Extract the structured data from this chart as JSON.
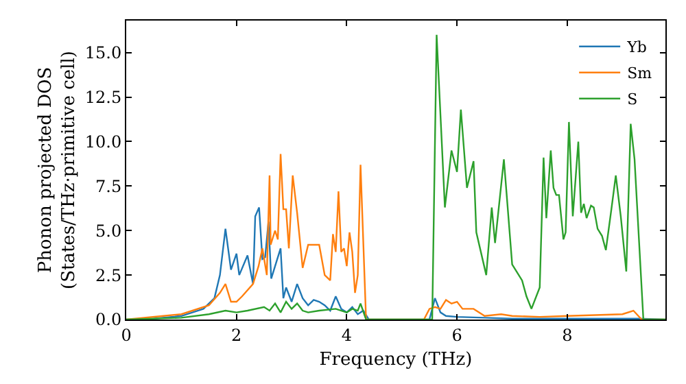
{
  "chart_data": {
    "type": "line",
    "xlabel": "Frequency (THz)",
    "ylabel": "Phonon projected DOS\n(States/THz·primitive cell)",
    "xlim": [
      0,
      9.78
    ],
    "ylim": [
      0,
      16.8
    ],
    "xticks": [
      0,
      2,
      4,
      6,
      8
    ],
    "yticks": [
      {
        "value": 0,
        "label": "0.0"
      },
      2.5,
      {
        "value": 5,
        "label": "5.0"
      },
      7.5,
      {
        "value": 10,
        "label": "10.0"
      },
      12.5,
      {
        "value": 15,
        "label": "15.0"
      }
    ],
    "legend": "top right",
    "marker": "none",
    "line_style": "solid",
    "series": [
      {
        "name": "Yb",
        "color": "#1f77b4",
        "x": [
          0,
          0.5,
          1,
          1.4,
          1.6,
          1.7,
          1.8,
          1.9,
          2.0,
          2.05,
          2.2,
          2.3,
          2.34,
          2.41,
          2.47,
          2.52,
          2.58,
          2.63,
          2.7,
          2.8,
          2.85,
          2.9,
          3.0,
          3.1,
          3.2,
          3.3,
          3.4,
          3.5,
          3.6,
          3.7,
          3.8,
          3.9,
          4.0,
          4.1,
          4.2,
          4.3,
          4.4,
          5.5,
          5.6,
          5.7,
          5.8,
          6.0,
          6.5,
          7.0,
          8.0,
          9.3,
          9.78
        ],
        "values": [
          0,
          0.05,
          0.2,
          0.6,
          1.2,
          2.5,
          5.1,
          2.8,
          3.7,
          2.5,
          3.6,
          2.0,
          5.8,
          6.3,
          3.4,
          3.5,
          5.5,
          2.3,
          3.0,
          4.0,
          1.2,
          1.8,
          1.0,
          2.0,
          1.2,
          0.8,
          1.1,
          1.0,
          0.8,
          0.5,
          1.3,
          0.6,
          0.4,
          0.7,
          0.3,
          0.5,
          0,
          0,
          1.2,
          0.4,
          0.2,
          0.15,
          0.1,
          0.05,
          0.05,
          0.05,
          0
        ]
      },
      {
        "name": "Sm",
        "color": "#ff7f0e",
        "x": [
          0,
          1,
          1.5,
          1.7,
          1.8,
          1.9,
          2.0,
          2.1,
          2.3,
          2.4,
          2.47,
          2.55,
          2.6,
          2.62,
          2.7,
          2.75,
          2.8,
          2.85,
          2.9,
          2.95,
          3.02,
          3.1,
          3.2,
          3.3,
          3.4,
          3.5,
          3.6,
          3.7,
          3.75,
          3.8,
          3.85,
          3.9,
          3.95,
          4.0,
          4.05,
          4.1,
          4.15,
          4.2,
          4.25,
          4.35,
          5.4,
          5.5,
          5.6,
          5.7,
          5.8,
          5.9,
          6.0,
          6.1,
          6.3,
          6.5,
          6.8,
          7.0,
          7.5,
          8.0,
          9.0,
          9.2,
          9.35,
          9.78
        ],
        "values": [
          0,
          0.3,
          0.8,
          1.5,
          2.0,
          1.0,
          1.0,
          1.3,
          2.0,
          3.0,
          4.0,
          2.5,
          8.1,
          4.2,
          5.0,
          4.5,
          9.3,
          6.2,
          6.2,
          4.0,
          8.1,
          6.0,
          2.9,
          4.2,
          4.2,
          4.2,
          2.5,
          2.2,
          4.8,
          3.8,
          7.2,
          3.8,
          4.0,
          3.0,
          4.9,
          3.8,
          1.5,
          2.5,
          8.7,
          0,
          0,
          0.6,
          0.7,
          0.6,
          1.1,
          0.9,
          1.0,
          0.6,
          0.6,
          0.2,
          0.3,
          0.2,
          0.15,
          0.2,
          0.3,
          0.5,
          0,
          0
        ]
      },
      {
        "name": "S",
        "color": "#2ca02c",
        "x": [
          0,
          1,
          1.5,
          1.8,
          2.0,
          2.2,
          2.5,
          2.6,
          2.7,
          2.8,
          2.9,
          3.0,
          3.1,
          3.2,
          3.3,
          3.5,
          3.8,
          4.0,
          4.1,
          4.2,
          4.25,
          4.35,
          5.55,
          5.63,
          5.78,
          5.9,
          6.0,
          6.07,
          6.18,
          6.3,
          6.35,
          6.53,
          6.63,
          6.69,
          6.85,
          7.0,
          7.18,
          7.26,
          7.35,
          7.5,
          7.57,
          7.62,
          7.7,
          7.75,
          7.8,
          7.85,
          7.93,
          7.97,
          8.03,
          8.1,
          8.2,
          8.25,
          8.3,
          8.35,
          8.43,
          8.48,
          8.55,
          8.63,
          8.7,
          8.8,
          8.88,
          8.97,
          9.07,
          9.15,
          9.22,
          9.3,
          9.38,
          9.78
        ],
        "values": [
          0,
          0.1,
          0.3,
          0.5,
          0.4,
          0.5,
          0.7,
          0.5,
          0.9,
          0.4,
          1.0,
          0.6,
          0.9,
          0.5,
          0.4,
          0.5,
          0.6,
          0.4,
          0.6,
          0.5,
          0.9,
          0,
          0,
          16.0,
          6.3,
          9.5,
          8.3,
          11.8,
          7.4,
          8.9,
          4.9,
          2.5,
          6.3,
          4.3,
          9.0,
          3.1,
          2.2,
          1.3,
          0.6,
          1.8,
          9.1,
          5.7,
          9.5,
          7.4,
          7.0,
          7.0,
          4.5,
          4.9,
          11.1,
          5.8,
          10.0,
          6.0,
          6.5,
          5.7,
          6.4,
          6.3,
          5.1,
          4.7,
          3.9,
          6.2,
          8.1,
          5.8,
          2.7,
          11.0,
          9.0,
          4.5,
          0,
          0
        ]
      }
    ]
  }
}
